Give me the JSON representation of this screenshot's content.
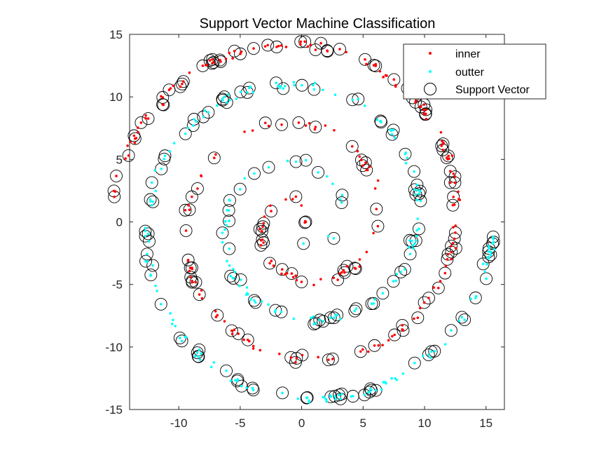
{
  "chart_data": {
    "type": "scatter",
    "title": "Support Vector Machine Classification",
    "xlabel": "",
    "ylabel": "",
    "xlim": [
      -14,
      16.5
    ],
    "ylim": [
      -15,
      15
    ],
    "xticks": [
      -10,
      -5,
      0,
      5,
      10,
      15
    ],
    "yticks": [
      -15,
      -10,
      -5,
      0,
      5,
      10,
      15
    ],
    "xtick_labels": [
      "-10",
      "-5",
      "0",
      "5",
      "10",
      "15"
    ],
    "ytick_labels": [
      "-15",
      "-10",
      "-5",
      "0",
      "5",
      "10",
      "15"
    ],
    "grid": false,
    "legend_position": "top-right",
    "legend": [
      {
        "label": "inner",
        "marker": "dot",
        "color": "#ff0000"
      },
      {
        "label": "outter",
        "marker": "dot",
        "color": "#00ffff"
      },
      {
        "label": "Support Vector",
        "marker": "circle",
        "color": "#000000"
      }
    ],
    "series": [
      {
        "name": "inner",
        "color": "#ff0000",
        "spiral": {
          "a": 1.0,
          "theta_range": [
            0,
            15.6
          ],
          "n_points": 260
        },
        "description_values": "Archimedean spiral r = theta starting at origin"
      },
      {
        "name": "outter",
        "color": "#00ffff",
        "spiral": {
          "a": 1.0,
          "theta_offset": 3.14159,
          "theta_range": [
            1.6,
            15.7
          ],
          "n_points": 260
        }
      },
      {
        "name": "Support Vector",
        "color": "#000000",
        "marker": "open-circle"
      }
    ]
  }
}
